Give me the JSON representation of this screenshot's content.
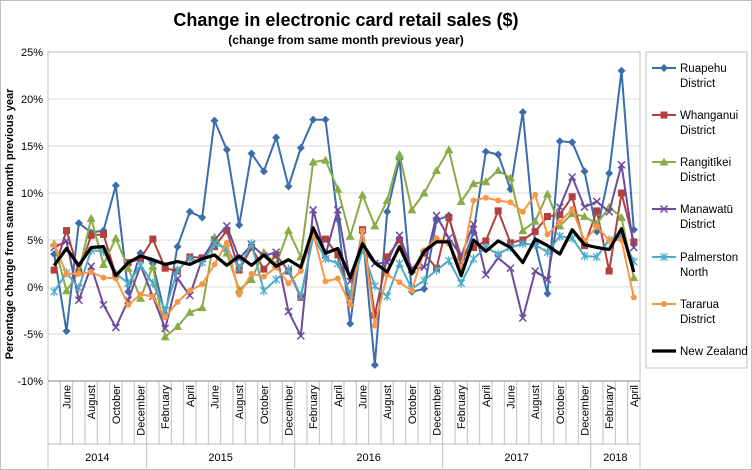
{
  "chart_data": {
    "type": "line",
    "title": "Change in electronic card retail sales ($)",
    "subtitle": "(change from same month previous year)",
    "ylabel": "Percentage change from same month previous year",
    "ylim": [
      -10,
      25
    ],
    "yticks": [
      "-10%",
      "-5%",
      "0%",
      "5%",
      "10%",
      "15%",
      "20%",
      "25%"
    ],
    "grid": true,
    "legend_position": "right",
    "x": [
      "2014-05",
      "2014-06",
      "2014-07",
      "2014-08",
      "2014-09",
      "2014-10",
      "2014-11",
      "2014-12",
      "2015-01",
      "2015-02",
      "2015-03",
      "2015-04",
      "2015-05",
      "2015-06",
      "2015-07",
      "2015-08",
      "2015-09",
      "2015-10",
      "2015-11",
      "2015-12",
      "2016-01",
      "2016-02",
      "2016-03",
      "2016-04",
      "2016-05",
      "2016-06",
      "2016-07",
      "2016-08",
      "2016-09",
      "2016-10",
      "2016-11",
      "2016-12",
      "2017-01",
      "2017-02",
      "2017-03",
      "2017-04",
      "2017-05",
      "2017-06",
      "2017-07",
      "2017-08",
      "2017-09",
      "2017-10",
      "2017-11",
      "2017-12",
      "2018-01",
      "2018-02",
      "2018-03",
      "2018-04"
    ],
    "month_labels": [
      "June",
      "August",
      "October",
      "December",
      "February",
      "April",
      "June",
      "August",
      "October",
      "December",
      "February",
      "April",
      "June",
      "August",
      "October",
      "December",
      "February",
      "April",
      "June",
      "August",
      "October",
      "December",
      "February",
      "April"
    ],
    "years": [
      "2014",
      "2015",
      "2016",
      "2017",
      "2018"
    ],
    "series": [
      {
        "name": "Ruapehu District",
        "color": "#3b6dad",
        "marker": "diamond",
        "values": [
          3.5,
          -4.7,
          6.8,
          5.8,
          6.0,
          10.8,
          -0.5,
          3.6,
          2.5,
          -3.0,
          4.3,
          8.0,
          7.4,
          17.7,
          14.6,
          6.6,
          14.2,
          12.3,
          15.9,
          10.7,
          14.8,
          17.8,
          17.8,
          7.2,
          -3.9,
          5.8,
          -8.3,
          8.0,
          13.6,
          -0.5,
          -0.2,
          7.1,
          7.6,
          2.3,
          5.8,
          14.4,
          14.1,
          10.4,
          18.6,
          4.6,
          -0.7,
          15.5,
          15.4,
          12.3,
          5.9,
          12.1,
          23.0,
          6.1
        ]
      },
      {
        "name": "Whanganui District",
        "color": "#b0413e",
        "marker": "square",
        "values": [
          1.8,
          6.0,
          1.6,
          5.5,
          5.6,
          1.3,
          2.6,
          3.0,
          5.1,
          2.0,
          1.7,
          3.2,
          3.1,
          4.3,
          6.0,
          1.8,
          4.2,
          1.9,
          3.4,
          1.7,
          -1.1,
          5.4,
          5.1,
          3.4,
          -1.0,
          6.1,
          -3.0,
          3.2,
          5.0,
          1.8,
          3.6,
          2.0,
          7.4,
          3.2,
          4.2,
          4.9,
          8.1,
          4.7,
          5.0,
          5.9,
          7.5,
          7.7,
          9.6,
          4.4,
          8.1,
          1.7,
          10.0,
          4.8
        ]
      },
      {
        "name": "Rangitīkei District",
        "color": "#8aac46",
        "marker": "triangle",
        "values": [
          4.6,
          -0.4,
          1.6,
          7.3,
          2.4,
          5.2,
          2.0,
          -1.2,
          2.2,
          -5.3,
          -4.2,
          -2.7,
          -2.2,
          5.3,
          3.6,
          -0.3,
          0.8,
          3.7,
          2.4,
          6.0,
          3.2,
          13.3,
          13.5,
          10.4,
          5.4,
          9.8,
          6.5,
          9.2,
          14.1,
          8.2,
          10.0,
          12.4,
          14.6,
          9.1,
          11.0,
          11.2,
          12.4,
          11.6,
          6.0,
          7.0,
          9.9,
          6.5,
          7.8,
          7.5,
          6.7,
          8.5,
          7.4,
          1.0
        ]
      },
      {
        "name": "Manawatū District",
        "color": "#6f4a9c",
        "marker": "x",
        "values": [
          4.2,
          4.9,
          -1.4,
          2.2,
          -1.9,
          -4.3,
          -1.4,
          2.3,
          -1.0,
          -4.4,
          0.9,
          -0.9,
          3.0,
          5.0,
          6.5,
          3.0,
          4.5,
          3.3,
          3.7,
          -2.6,
          -5.2,
          8.2,
          3.4,
          8.2,
          0.6,
          4.0,
          2.5,
          2.6,
          5.5,
          1.9,
          2.1,
          7.6,
          5.2,
          3.3,
          6.7,
          1.3,
          3.1,
          2.0,
          -3.3,
          1.7,
          0.8,
          8.5,
          11.7,
          8.5,
          9.1,
          8.0,
          13.0,
          4.2
        ]
      },
      {
        "name": "Palmerston North",
        "color": "#4bacc6",
        "marker": "star",
        "values": [
          -0.5,
          1.5,
          -0.1,
          3.9,
          3.8,
          1.4,
          0.4,
          2.3,
          0.4,
          -2.5,
          1.8,
          3.0,
          2.6,
          4.6,
          4.1,
          2.0,
          4.6,
          -0.4,
          0.8,
          1.9,
          -1.0,
          5.4,
          3.0,
          2.5,
          -0.8,
          4.0,
          0.1,
          -1.0,
          2.5,
          -0.2,
          0.7,
          1.8,
          2.8,
          0.4,
          3.0,
          4.2,
          3.5,
          4.2,
          4.6,
          4.5,
          3.7,
          5.4,
          5.2,
          3.3,
          3.2,
          5.0,
          5.4,
          2.7
        ]
      },
      {
        "name": "Tararua District",
        "color": "#f79646",
        "marker": "circle",
        "values": [
          4.5,
          1.4,
          1.4,
          1.6,
          1.0,
          0.9,
          -1.9,
          -0.8,
          -1.0,
          -3.2,
          -1.6,
          -0.4,
          0.3,
          2.4,
          4.7,
          -0.8,
          1.4,
          1.1,
          2.1,
          0.4,
          1.7,
          5.7,
          0.6,
          0.9,
          -1.9,
          6.0,
          -4.1,
          1.3,
          0.5,
          -0.4,
          3.9,
          5.2,
          4.6,
          2.0,
          9.2,
          9.5,
          9.2,
          9.0,
          8.0,
          9.8,
          5.6,
          6.9,
          8.3,
          4.9,
          6.4,
          5.0,
          5.0,
          -1.1
        ]
      },
      {
        "name": "New Zealand",
        "color": "#000000",
        "marker": "none",
        "values": [
          2.3,
          4.1,
          2.3,
          4.2,
          4.3,
          1.2,
          2.6,
          3.3,
          2.9,
          2.4,
          2.7,
          2.4,
          3.0,
          3.4,
          2.3,
          3.3,
          2.3,
          3.4,
          2.2,
          2.9,
          2.1,
          6.3,
          3.6,
          4.1,
          1.0,
          4.6,
          2.6,
          1.6,
          4.3,
          1.4,
          3.8,
          4.8,
          4.8,
          1.2,
          5.0,
          3.8,
          4.9,
          4.2,
          2.6,
          5.1,
          4.4,
          3.5,
          6.1,
          4.5,
          4.2,
          4.0,
          6.2,
          1.6
        ]
      }
    ]
  }
}
